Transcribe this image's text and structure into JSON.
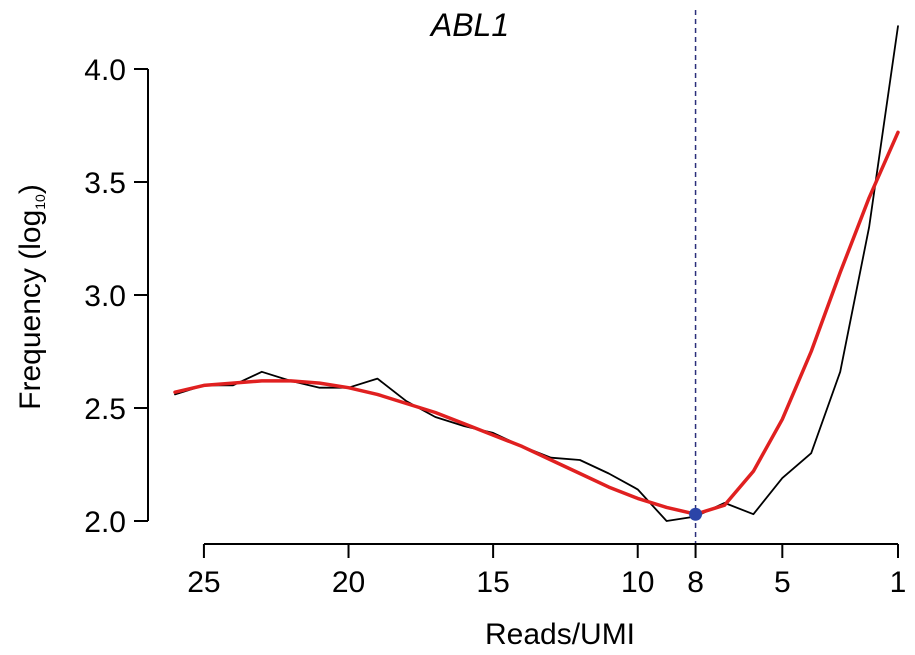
{
  "chart_data": {
    "type": "line",
    "title": "ABL1",
    "xlabel": "Reads/UMI",
    "ylabel_prefix": "Frequency (log",
    "ylabel_subscript": "10",
    "ylabel_suffix": ")",
    "x_reversed": true,
    "xlim": [
      26,
      1
    ],
    "ylim": [
      2.0,
      4.2
    ],
    "x_ticks": [
      25,
      20,
      15,
      10,
      8,
      5,
      1
    ],
    "x_tick_labels": [
      "25",
      "20",
      "15",
      "10",
      "8",
      "5",
      "1"
    ],
    "y_ticks": [
      2.0,
      2.5,
      3.0,
      3.5,
      4.0
    ],
    "y_tick_labels": [
      "2.0",
      "2.5",
      "3.0",
      "3.5",
      "4.0"
    ],
    "threshold_x": 8,
    "series": [
      {
        "color": "#000000",
        "x": [
          26,
          25,
          24,
          23,
          22,
          21,
          20,
          19,
          18,
          17,
          16,
          15,
          14,
          13,
          12,
          11,
          10,
          9,
          8,
          7,
          6,
          5,
          4,
          3,
          2,
          1
        ],
        "y": [
          2.56,
          2.6,
          2.6,
          2.66,
          2.62,
          2.59,
          2.59,
          2.63,
          2.53,
          2.46,
          2.42,
          2.39,
          2.33,
          2.28,
          2.27,
          2.21,
          2.14,
          2.0,
          2.02,
          2.08,
          2.03,
          2.19,
          2.3,
          2.66,
          3.3,
          4.19
        ]
      },
      {
        "color": "#e02020",
        "x": [
          26,
          25,
          24,
          23,
          22,
          21,
          20,
          19,
          18,
          17,
          16,
          15,
          14,
          13,
          12,
          11,
          10,
          9,
          8,
          7,
          6,
          5,
          4,
          3,
          2,
          1
        ],
        "y": [
          2.57,
          2.6,
          2.61,
          2.62,
          2.62,
          2.61,
          2.59,
          2.56,
          2.52,
          2.48,
          2.43,
          2.38,
          2.33,
          2.27,
          2.21,
          2.15,
          2.1,
          2.06,
          2.03,
          2.07,
          2.22,
          2.45,
          2.75,
          3.1,
          3.43,
          3.72
        ]
      }
    ],
    "points": [
      {
        "x": 8,
        "y": 2.03,
        "color": "#2b44a8"
      }
    ]
  }
}
